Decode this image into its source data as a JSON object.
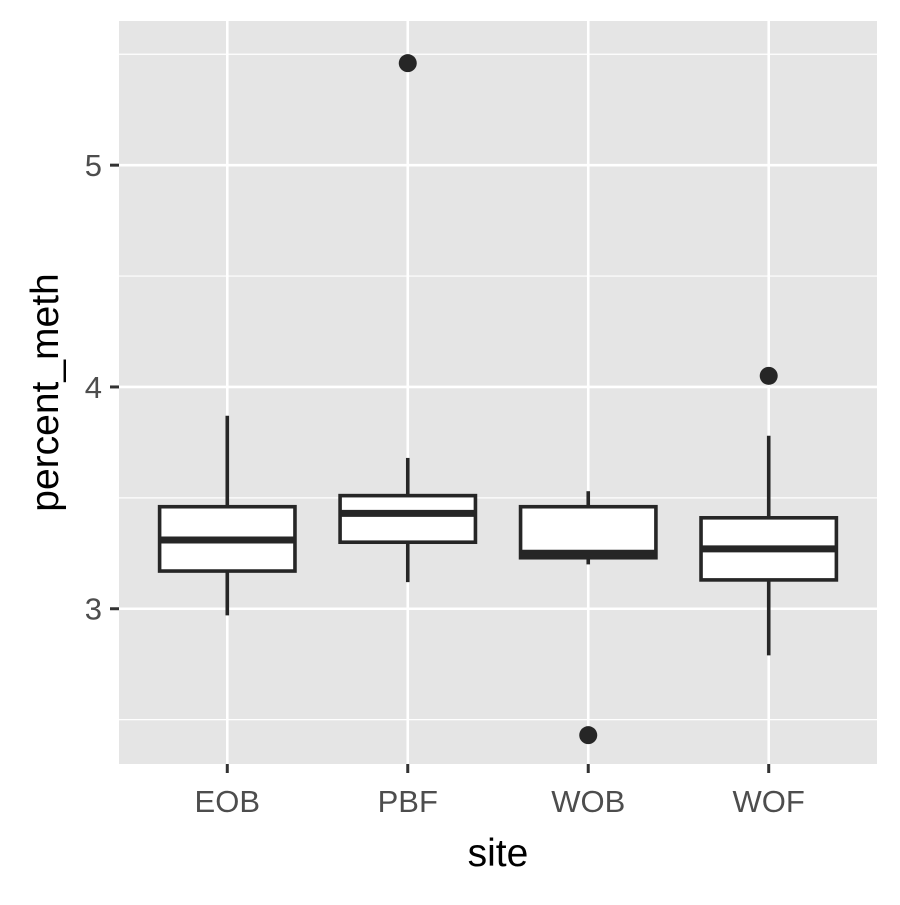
{
  "chart_data": {
    "type": "box",
    "title": "",
    "xlabel": "site",
    "ylabel": "percent_meth",
    "categories": [
      "EOB",
      "PBF",
      "WOB",
      "WOF"
    ],
    "ylim": [
      2.3,
      5.65
    ],
    "yticks": [
      3,
      4,
      5
    ],
    "yticklabels": [
      "3",
      "4",
      "5"
    ],
    "grid": true,
    "legend": "none",
    "colors": {
      "panel": "#e5e5e5",
      "grid": "#ffffff",
      "box_fill": "#ffffff",
      "box_stroke": "#262626",
      "point": "#262626",
      "axis_text": "#4d4d4d",
      "axis_title": "#000000"
    },
    "boxes": [
      {
        "category": "EOB",
        "min": 2.97,
        "q1": 3.17,
        "median": 3.31,
        "q3": 3.46,
        "max": 3.87,
        "outliers": []
      },
      {
        "category": "PBF",
        "min": 3.12,
        "q1": 3.3,
        "median": 3.43,
        "q3": 3.51,
        "max": 3.68,
        "outliers": [
          5.46
        ]
      },
      {
        "category": "WOB",
        "min": 3.2,
        "q1": 3.23,
        "median": 3.25,
        "q3": 3.46,
        "max": 3.53,
        "outliers": [
          2.43
        ]
      },
      {
        "category": "WOF",
        "min": 2.79,
        "q1": 3.13,
        "median": 3.27,
        "q3": 3.41,
        "max": 3.78,
        "outliers": [
          4.05
        ]
      }
    ]
  }
}
